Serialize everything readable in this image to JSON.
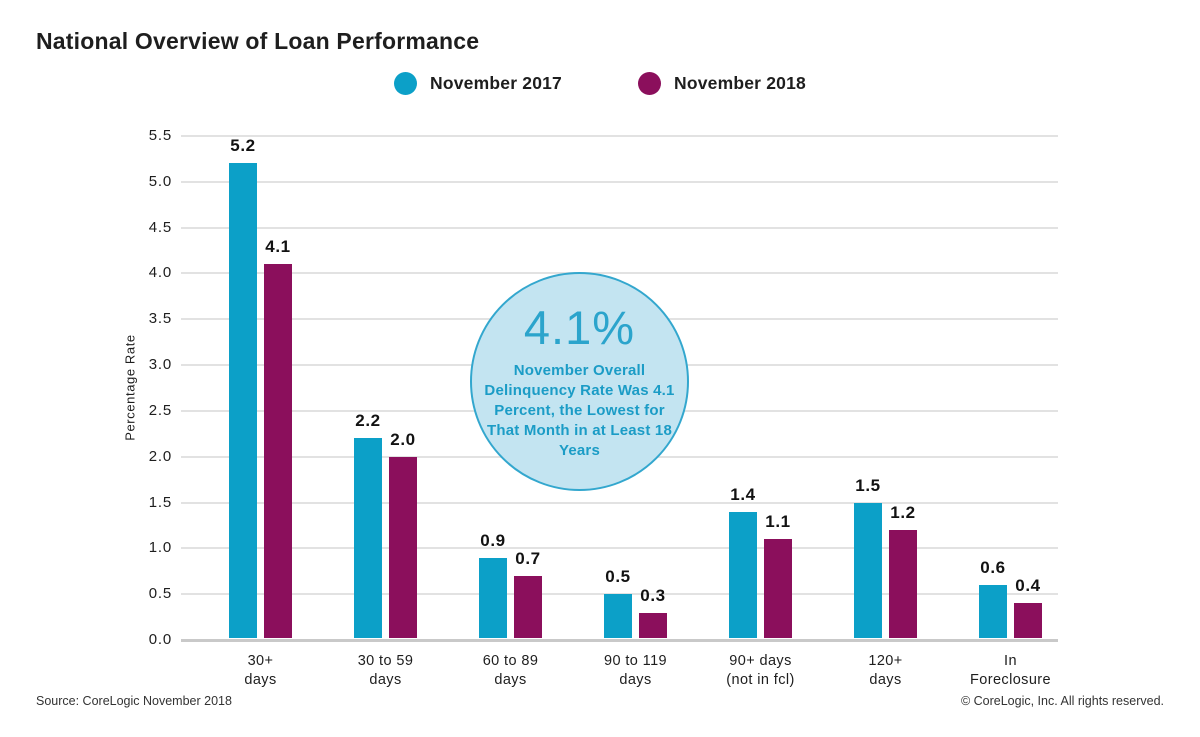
{
  "title": "National Overview of Loan Performance",
  "legend": [
    {
      "label": "November 2017",
      "color": "#0ca0c8"
    },
    {
      "label": "November 2018",
      "color": "#8b0f5c"
    }
  ],
  "chart_data": {
    "type": "bar",
    "categories": [
      "30+\ndays",
      "30 to 59\ndays",
      "60 to 89\ndays",
      "90 to 119\ndays",
      "90+ days\n(not in fcl)",
      "120+\ndays",
      "In\nForeclosure"
    ],
    "series": [
      {
        "name": "November 2017",
        "color": "#0ca0c8",
        "values": [
          5.2,
          2.2,
          0.9,
          0.5,
          1.4,
          1.5,
          0.6
        ]
      },
      {
        "name": "November 2018",
        "color": "#8b0f5c",
        "values": [
          4.1,
          2.0,
          0.7,
          0.3,
          1.1,
          1.2,
          0.4
        ]
      }
    ],
    "title": "National Overview of Loan Performance",
    "xlabel": "",
    "ylabel": "Percentage Rate",
    "ylim": [
      0.0,
      5.5
    ],
    "ytick_step": 0.5,
    "grid": true,
    "legend_position": "top"
  },
  "annotation": {
    "headline": "4.1%",
    "body": "November Overall Delinquency Rate Was 4.1 Percent, the Lowest for That Month in at Least 18 Years",
    "fill_color": "#c3e4f1",
    "border_color": "#33a7ce",
    "headline_color": "#2ba4cc",
    "body_color": "#1b9cc6"
  },
  "footer": {
    "source": "Source: CoreLogic November 2018",
    "copyright": "© CoreLogic, Inc. All rights reserved."
  },
  "colors": {
    "grid": "#e2e2e2",
    "baseline": "#c9c9c9",
    "text": "#1e1e1e"
  }
}
